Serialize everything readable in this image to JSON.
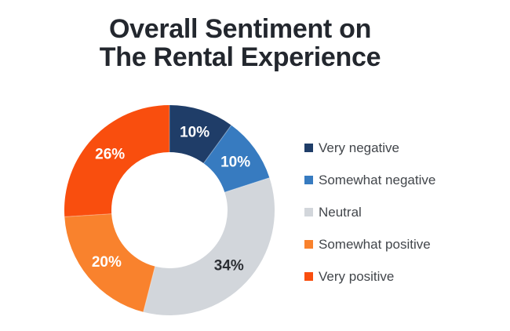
{
  "title": {
    "line1": "Overall Sentiment on",
    "line2": "The Rental Experience"
  },
  "chart_data": {
    "type": "pie",
    "variant": "donut",
    "title": "Overall Sentiment on The Rental Experience",
    "start_angle_deg": 0,
    "direction": "clockwise",
    "inner_radius_ratio": 0.55,
    "legend_position": "right",
    "categories": [
      "Very negative",
      "Somewhat negative",
      "Neutral",
      "Somewhat positive",
      "Very positive"
    ],
    "values": [
      10,
      10,
      34,
      20,
      26
    ],
    "segments": [
      {
        "label": "Very negative",
        "value": 10,
        "display": "10%",
        "color": "#1f3d68",
        "label_color": "#ffffff"
      },
      {
        "label": "Somewhat negative",
        "value": 10,
        "display": "10%",
        "color": "#377bc0",
        "label_color": "#ffffff"
      },
      {
        "label": "Neutral",
        "value": 34,
        "display": "34%",
        "color": "#d2d6db",
        "label_color": "#2b2e33"
      },
      {
        "label": "Somewhat positive",
        "value": 20,
        "display": "20%",
        "color": "#f9822d",
        "label_color": "#ffffff"
      },
      {
        "label": "Very positive",
        "value": 26,
        "display": "26%",
        "color": "#f94e0e",
        "label_color": "#ffffff"
      }
    ]
  },
  "colors": {
    "background": "#ffffff",
    "title_text": "#23272e",
    "legend_text": "#42464b"
  }
}
